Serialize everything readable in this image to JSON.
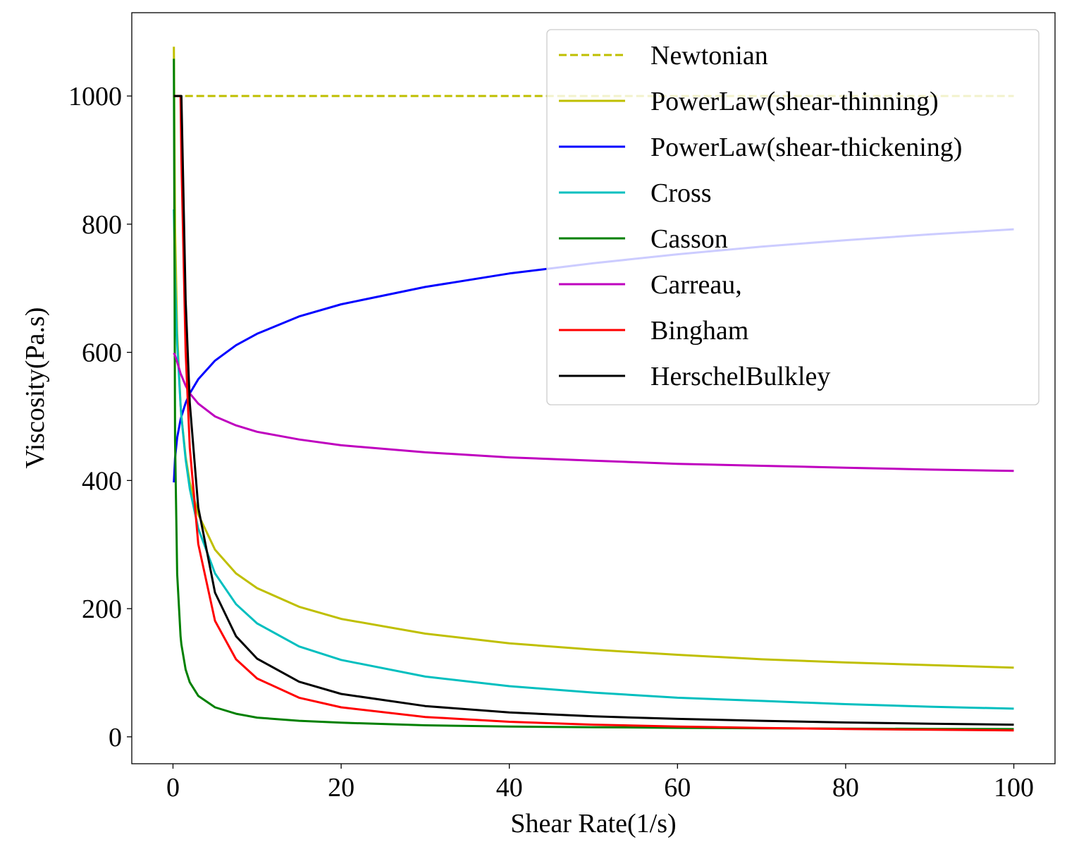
{
  "chart_data": {
    "type": "line",
    "title": "",
    "xlabel": "Shear Rate(1/s)",
    "ylabel": "Viscosity(Pa.s)",
    "xlim": [
      -4.9,
      104.9
    ],
    "ylim": [
      -42,
      1130
    ],
    "xticks": [
      0,
      20,
      40,
      60,
      80,
      100
    ],
    "yticks": [
      0,
      200,
      400,
      600,
      800,
      1000
    ],
    "grid": false,
    "legend_position": "top-right",
    "x": [
      0.1,
      0.25,
      0.5,
      0.9,
      1,
      1.5,
      2,
      3,
      5,
      7.5,
      10,
      15,
      20,
      30,
      40,
      50,
      60,
      70,
      80,
      90,
      100
    ],
    "series": [
      {
        "name": "Newtonian",
        "color": "#bfbf00",
        "dashed": true,
        "values": [
          1000,
          1000,
          1000,
          1000,
          1000,
          1000,
          1000,
          1000,
          1000,
          1000,
          1000,
          1000,
          1000,
          1000,
          1000,
          1000,
          1000,
          1000,
          1000,
          1000,
          1000
        ]
      },
      {
        "name": "PowerLaw(shear-thinning)",
        "color": "#bfbf00",
        "dashed": false,
        "values": [
          1077,
          794,
          630,
          518,
          500,
          437,
          397,
          347,
          292,
          255,
          232,
          203,
          184,
          161,
          146,
          136,
          128,
          121,
          116,
          112,
          108
        ]
      },
      {
        "name": "PowerLaw(shear-thickening)",
        "color": "#0000ff",
        "dashed": false,
        "values": [
          397,
          435,
          467,
          495,
          500,
          521,
          536,
          558,
          587,
          611,
          629,
          656,
          675,
          702,
          723,
          739,
          753,
          765,
          775,
          784,
          792
        ]
      },
      {
        "name": "Cross",
        "color": "#00bfbf",
        "dashed": false,
        "values": [
          823,
          716,
          613,
          518,
          500,
          433,
          387,
          325,
          255,
          207,
          177,
          141,
          120,
          94,
          79,
          69,
          61,
          56,
          51,
          47,
          44
        ]
      },
      {
        "name": "Casson",
        "color": "#008000",
        "dashed": false,
        "values": [
          1058,
          462,
          254,
          157,
          144,
          105,
          85,
          64,
          46,
          36,
          30,
          25,
          22,
          18,
          16,
          15,
          14,
          13.4,
          12.8,
          12.4,
          12
        ]
      },
      {
        "name": "Carreau,",
        "color": "#bf00bf",
        "dashed": false,
        "values": [
          599,
          595,
          585,
          567,
          564,
          548,
          536,
          520,
          500,
          486,
          476,
          464,
          455,
          444,
          436,
          431,
          426,
          423,
          420,
          417,
          415
        ]
      },
      {
        "name": "Bingham",
        "color": "#ff0000",
        "dashed": false,
        "values": [
          1000,
          1000,
          1000,
          1000,
          901,
          601,
          451,
          301,
          181,
          121,
          91,
          61,
          46,
          31,
          23.5,
          19,
          16,
          13.9,
          12.25,
          11,
          10
        ]
      },
      {
        "name": "HerschelBulkley",
        "color": "#000000",
        "dashed": false,
        "values": [
          1000,
          1000,
          1000,
          1000,
          1000,
          682,
          521,
          358,
          225,
          157,
          122,
          86,
          67,
          48,
          38,
          32,
          28,
          25,
          22.4,
          20.5,
          19
        ]
      }
    ]
  }
}
